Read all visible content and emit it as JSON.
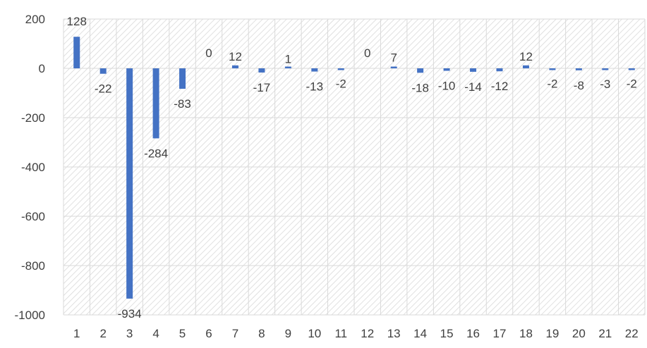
{
  "chart_data": {
    "type": "bar",
    "categories": [
      "1",
      "2",
      "3",
      "4",
      "5",
      "6",
      "7",
      "8",
      "9",
      "10",
      "11",
      "12",
      "13",
      "14",
      "15",
      "16",
      "17",
      "18",
      "19",
      "20",
      "21",
      "22"
    ],
    "values": [
      128,
      -22,
      -934,
      -284,
      -83,
      0,
      12,
      -17,
      1,
      -13,
      -2,
      0,
      7,
      -18,
      -10,
      -14,
      -12,
      12,
      -2,
      -8,
      -3,
      -2
    ],
    "data_labels": [
      "128",
      "-22",
      "-934",
      "-284",
      "-83",
      "0",
      "12",
      "-17",
      "1",
      "-13",
      "-2",
      "0",
      "7",
      "-18",
      "-10",
      "-14",
      "-12",
      "12",
      "-2",
      "-8",
      "-3",
      "-2"
    ],
    "y_ticks": [
      200,
      0,
      -200,
      -400,
      -600,
      -800,
      -1000
    ],
    "y_tick_labels": [
      "200",
      "0",
      "-200",
      "-400",
      "-600",
      "-800",
      "-1000"
    ],
    "ylim": [
      -1000,
      200
    ],
    "grid": true,
    "plot_background": "hatched",
    "legend": "none",
    "title": "",
    "xlabel": "",
    "ylabel": "",
    "colors": {
      "bar": "#4472C4",
      "grid": "#d9d9d9",
      "hatch": "#d9d9d9",
      "text": "#404040"
    }
  }
}
